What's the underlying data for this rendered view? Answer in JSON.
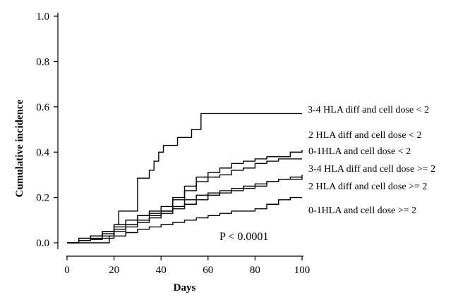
{
  "chart_data": {
    "type": "line",
    "title": "",
    "xlabel": "Days",
    "ylabel": "Cumulative incidence",
    "xlim": [
      0,
      100
    ],
    "ylim": [
      0,
      1.0
    ],
    "xticks": [
      0,
      20,
      40,
      60,
      80,
      100
    ],
    "yticks": [
      0.0,
      0.2,
      0.4,
      0.6,
      0.8,
      1.0
    ],
    "ytick_labels": [
      "0.0",
      "0.2",
      "0.4",
      "0.6",
      "0.8",
      "1.0"
    ],
    "grid": false,
    "annotation": "P < 0.0001",
    "series": [
      {
        "name": "3-4 HLA diff and cell dose < 2",
        "x": [
          0,
          18,
          20,
          22,
          27,
          30,
          32,
          35,
          37,
          39,
          41,
          43,
          45,
          47,
          49,
          51,
          53,
          55,
          57,
          59,
          61,
          63,
          65,
          100
        ],
        "y": [
          0,
          0.03,
          0.08,
          0.14,
          0.14,
          0.285,
          0.285,
          0.32,
          0.36,
          0.4,
          0.43,
          0.43,
          0.43,
          0.465,
          0.465,
          0.465,
          0.5,
          0.5,
          0.57,
          0.57,
          0.57,
          0.57,
          0.57,
          0.57
        ]
      },
      {
        "name": "2 HLA diff and cell dose < 2",
        "x": [
          0,
          5,
          10,
          15,
          20,
          25,
          30,
          35,
          40,
          45,
          50,
          55,
          60,
          65,
          70,
          75,
          80,
          85,
          90,
          95,
          100
        ],
        "y": [
          0,
          0.02,
          0.03,
          0.05,
          0.08,
          0.1,
          0.12,
          0.14,
          0.16,
          0.2,
          0.25,
          0.29,
          0.31,
          0.33,
          0.35,
          0.36,
          0.37,
          0.38,
          0.38,
          0.4,
          0.41
        ]
      },
      {
        "name": "0-1HLA and cell dose < 2",
        "x": [
          0,
          5,
          10,
          15,
          20,
          25,
          30,
          35,
          40,
          45,
          50,
          55,
          60,
          65,
          70,
          75,
          80,
          85,
          90,
          95,
          100
        ],
        "y": [
          0,
          0.02,
          0.03,
          0.05,
          0.07,
          0.1,
          0.12,
          0.13,
          0.14,
          0.19,
          0.23,
          0.27,
          0.29,
          0.3,
          0.32,
          0.33,
          0.35,
          0.36,
          0.37,
          0.37,
          0.37
        ]
      },
      {
        "name": "3-4 HLA diff and cell dose >= 2",
        "x": [
          0,
          5,
          10,
          15,
          20,
          25,
          30,
          35,
          40,
          45,
          50,
          55,
          60,
          65,
          70,
          75,
          80,
          85,
          90,
          95,
          100
        ],
        "y": [
          0,
          0.01,
          0.03,
          0.04,
          0.06,
          0.08,
          0.1,
          0.12,
          0.14,
          0.16,
          0.19,
          0.21,
          0.22,
          0.23,
          0.24,
          0.25,
          0.26,
          0.27,
          0.28,
          0.29,
          0.3
        ]
      },
      {
        "name": "2 HLA diff and cell dose >= 2",
        "x": [
          0,
          5,
          10,
          15,
          20,
          25,
          30,
          35,
          40,
          45,
          50,
          55,
          60,
          65,
          70,
          75,
          80,
          85,
          90,
          95,
          100
        ],
        "y": [
          0,
          0.01,
          0.02,
          0.03,
          0.05,
          0.07,
          0.09,
          0.11,
          0.13,
          0.15,
          0.17,
          0.19,
          0.21,
          0.22,
          0.23,
          0.24,
          0.25,
          0.27,
          0.28,
          0.28,
          0.29
        ]
      },
      {
        "name": "0-1HLA and cell dose >= 2",
        "x": [
          0,
          5,
          10,
          15,
          20,
          25,
          30,
          35,
          40,
          45,
          50,
          55,
          60,
          65,
          70,
          75,
          80,
          85,
          90,
          95,
          100
        ],
        "y": [
          0,
          0.01,
          0.015,
          0.02,
          0.03,
          0.045,
          0.06,
          0.07,
          0.08,
          0.09,
          0.1,
          0.11,
          0.12,
          0.13,
          0.14,
          0.14,
          0.15,
          0.17,
          0.19,
          0.2,
          0.2
        ]
      }
    ]
  }
}
